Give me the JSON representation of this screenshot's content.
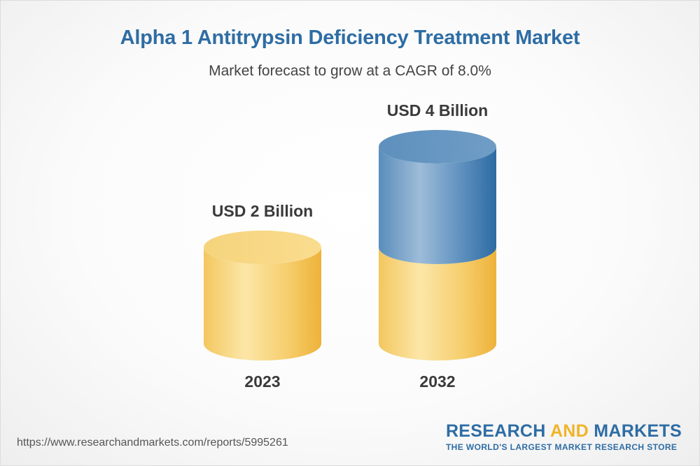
{
  "title": "Alpha 1 Antitrypsin Deficiency Treatment Market",
  "subtitle": "Market forecast to grow at a CAGR of 8.0%",
  "source_url": "https://www.researchandmarkets.com/reports/5995261",
  "brand": {
    "part1": "RESEARCH ",
    "part2": "AND",
    "part3": " MARKETS",
    "tagline": "THE WORLD'S LARGEST MARKET RESEARCH STORE"
  },
  "colors": {
    "title": "#2e6da4",
    "gold_light": "#fce6a6",
    "gold_dark": "#f0b53c",
    "blue_light": "#9dbcd8",
    "blue_dark": "#2e6da4"
  },
  "chart_data": {
    "type": "bar",
    "style": "3d-cylinder",
    "categories": [
      "2023",
      "2032"
    ],
    "values": [
      2,
      4
    ],
    "value_labels": [
      "USD 2 Billion",
      "USD 4 Billion"
    ],
    "unit": "USD Billion",
    "ylim": [
      0,
      4
    ],
    "cagr": "8.0%",
    "grid": false,
    "legend": "none"
  }
}
